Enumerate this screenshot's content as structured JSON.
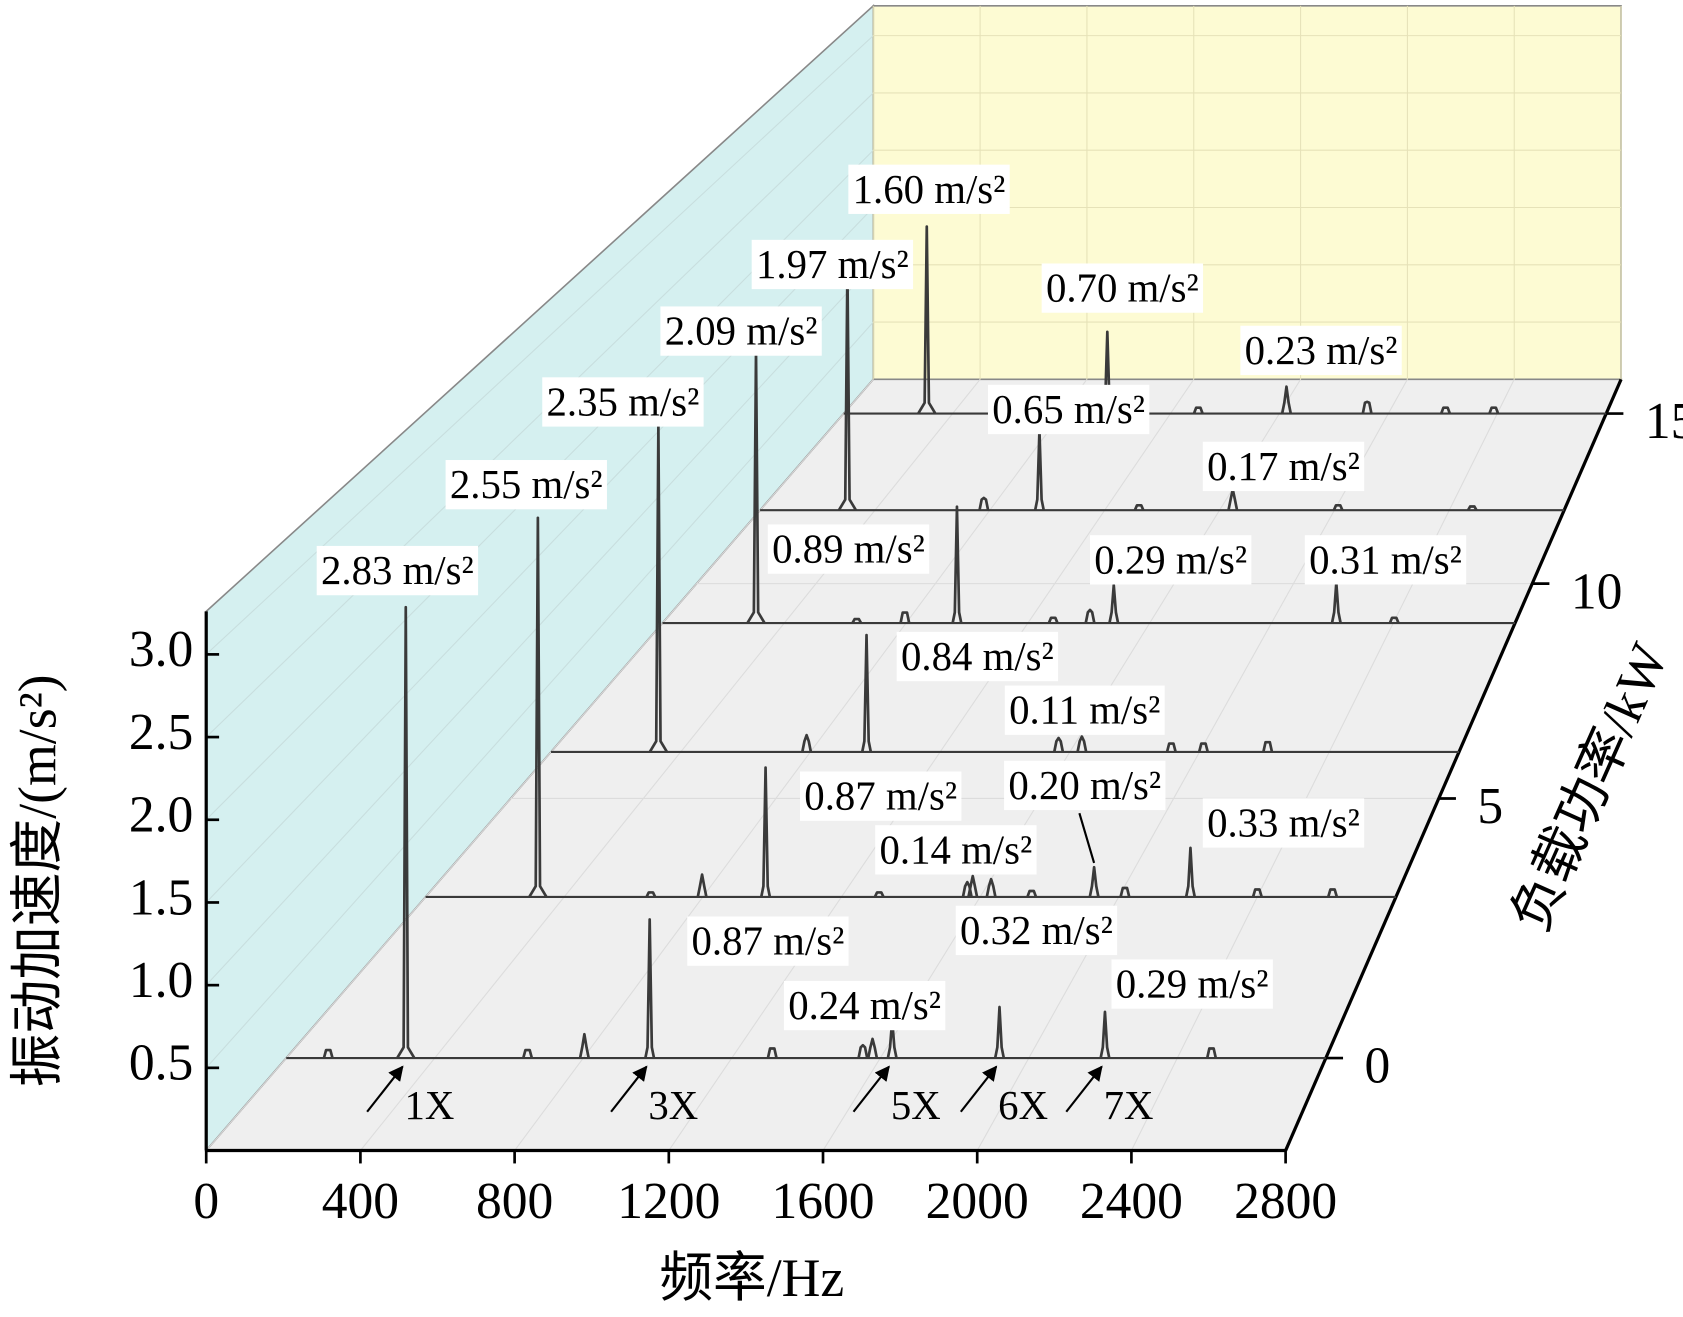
{
  "chart_data": {
    "type": "waterfall",
    "xlabel": "频率/Hz",
    "ylabel": "振动加速度/(m/s²)",
    "zlabel": "负载功率/kW",
    "xlim": [
      0,
      2800
    ],
    "xticks": [
      0,
      400,
      800,
      1200,
      1600,
      2000,
      2400,
      2800
    ],
    "ylim": [
      0,
      3.26
    ],
    "yticks": [
      0.5,
      {
        "value": 1,
        "label": "1.0"
      },
      1.5,
      {
        "value": 2,
        "label": "2.0"
      },
      2.5,
      {
        "value": 3,
        "label": "3.0"
      }
    ],
    "zlim": [
      -1.6,
      16.2
    ],
    "zticks": [
      0,
      5,
      10,
      15
    ],
    "grid": true,
    "color": "#3a3a3a",
    "series": [
      {
        "z": 0,
        "x": [
          113,
          322,
          650,
          803,
          979,
          1309,
          1553,
          1579,
          1632,
          1921,
          2205,
          2492
        ],
        "values": [
          0.05,
          2.83,
          0.05,
          0.15,
          0.87,
          0.06,
          0.08,
          0.12,
          0.24,
          0.32,
          0.29,
          0.06
        ],
        "value_labels": [
          null,
          "2.83 m/s²",
          null,
          null,
          "0.87 m/s²",
          null,
          null,
          null,
          "0.24 m/s²",
          "0.32 m/s²",
          "0.29 m/s²",
          null
        ]
      },
      {
        "z": 3,
        "x": [
          324,
          650,
          798,
          981,
          1309,
          1563,
          1579,
          1632,
          1749,
          1929,
          2018,
          2207,
          2400,
          2617
        ],
        "values": [
          2.55,
          0.03,
          0.15,
          0.87,
          0.03,
          0.1,
          0.14,
          0.12,
          0.04,
          0.2,
          0.06,
          0.33,
          0.05,
          0.05
        ],
        "value_labels": [
          "2.55 m/s²",
          null,
          null,
          "0.87 m/s²",
          null,
          null,
          "0.14 m/s²",
          null,
          null,
          "0.20 m/s²",
          null,
          "0.33 m/s²",
          null,
          null
        ]
      },
      {
        "z": 6,
        "x": [
          331,
          788,
          973,
          1565,
          1637,
          1913,
          2012,
          2210
        ],
        "values": [
          2.35,
          0.12,
          0.84,
          0.1,
          0.11,
          0.06,
          0.06,
          0.07
        ],
        "value_labels": [
          "2.35 m/s²",
          null,
          "0.84 m/s²",
          null,
          "0.11 m/s²",
          null,
          null,
          null
        ]
      },
      {
        "z": 9,
        "x": [
          307,
          638,
          796,
          967,
          1283,
          1404,
          1482,
          2213,
          2403
        ],
        "values": [
          2.09,
          0.03,
          0.08,
          0.89,
          0.04,
          0.1,
          0.29,
          0.31,
          0.04
        ],
        "value_labels": [
          "2.09 m/s²",
          null,
          null,
          "0.89 m/s²",
          null,
          null,
          "0.29 m/s²",
          "0.31 m/s²",
          null
        ]
      },
      {
        "z": 12,
        "x": [
          304,
          779,
          973,
          1320,
          1646,
          2013,
          2480
        ],
        "values": [
          1.97,
          0.1,
          0.65,
          0.04,
          0.17,
          0.04,
          0.03
        ],
        "value_labels": [
          "1.97 m/s²",
          null,
          "0.65 m/s²",
          null,
          "0.17 m/s²",
          null,
          null
        ]
      },
      {
        "z": 15,
        "x": [
          305,
          968,
          1302,
          1626,
          1922,
          2210,
          2387
        ],
        "values": [
          1.6,
          0.7,
          0.05,
          0.23,
          0.1,
          0.05,
          0.05
        ],
        "value_labels": [
          "1.60 m/s²",
          "0.70 m/s²",
          null,
          "0.23 m/s²",
          null,
          null,
          null
        ]
      }
    ],
    "annotations": [
      {
        "text": "1X",
        "x": 322
      },
      {
        "text": "3X",
        "x": 979
      },
      {
        "text": "5X",
        "x": 1632
      },
      {
        "text": "6X",
        "x": 1921
      },
      {
        "text": "7X",
        "x": 2205
      }
    ]
  }
}
